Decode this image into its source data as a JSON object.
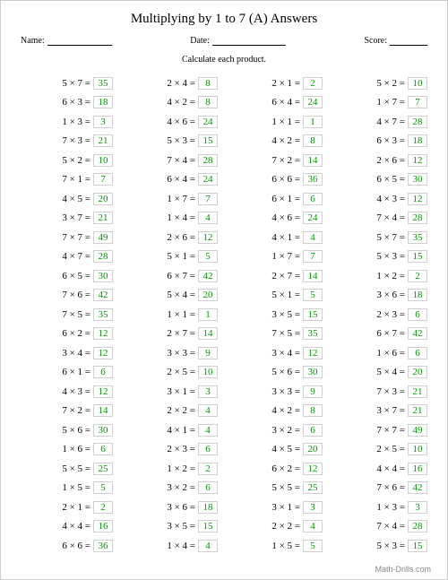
{
  "title": "Multiplying by 1 to 7 (A) Answers",
  "labels": {
    "name": "Name:",
    "date": "Date:",
    "score": "Score:"
  },
  "instruction": "Calculate each product.",
  "footer": "Math-Drills.com",
  "answer_color": "#009900",
  "answer_border": "#d0d0d0",
  "columns": [
    [
      {
        "a": 5,
        "b": 7,
        "r": 35
      },
      {
        "a": 6,
        "b": 3,
        "r": 18
      },
      {
        "a": 1,
        "b": 3,
        "r": 3
      },
      {
        "a": 7,
        "b": 3,
        "r": 21
      },
      {
        "a": 5,
        "b": 2,
        "r": 10
      },
      {
        "a": 7,
        "b": 1,
        "r": 7
      },
      {
        "a": 4,
        "b": 5,
        "r": 20
      },
      {
        "a": 3,
        "b": 7,
        "r": 21
      },
      {
        "a": 7,
        "b": 7,
        "r": 49
      },
      {
        "a": 4,
        "b": 7,
        "r": 28
      },
      {
        "a": 6,
        "b": 5,
        "r": 30
      },
      {
        "a": 7,
        "b": 6,
        "r": 42
      },
      {
        "a": 7,
        "b": 5,
        "r": 35
      },
      {
        "a": 6,
        "b": 2,
        "r": 12
      },
      {
        "a": 3,
        "b": 4,
        "r": 12
      },
      {
        "a": 6,
        "b": 1,
        "r": 6
      },
      {
        "a": 4,
        "b": 3,
        "r": 12
      },
      {
        "a": 7,
        "b": 2,
        "r": 14
      },
      {
        "a": 5,
        "b": 6,
        "r": 30
      },
      {
        "a": 1,
        "b": 6,
        "r": 6
      },
      {
        "a": 5,
        "b": 5,
        "r": 25
      },
      {
        "a": 1,
        "b": 5,
        "r": 5
      },
      {
        "a": 2,
        "b": 1,
        "r": 2
      },
      {
        "a": 4,
        "b": 4,
        "r": 16
      },
      {
        "a": 6,
        "b": 6,
        "r": 36
      }
    ],
    [
      {
        "a": 2,
        "b": 4,
        "r": 8
      },
      {
        "a": 4,
        "b": 2,
        "r": 8
      },
      {
        "a": 4,
        "b": 6,
        "r": 24
      },
      {
        "a": 5,
        "b": 3,
        "r": 15
      },
      {
        "a": 7,
        "b": 4,
        "r": 28
      },
      {
        "a": 6,
        "b": 4,
        "r": 24
      },
      {
        "a": 1,
        "b": 7,
        "r": 7
      },
      {
        "a": 1,
        "b": 4,
        "r": 4
      },
      {
        "a": 2,
        "b": 6,
        "r": 12
      },
      {
        "a": 5,
        "b": 1,
        "r": 5
      },
      {
        "a": 6,
        "b": 7,
        "r": 42
      },
      {
        "a": 5,
        "b": 4,
        "r": 20
      },
      {
        "a": 1,
        "b": 1,
        "r": 1
      },
      {
        "a": 2,
        "b": 7,
        "r": 14
      },
      {
        "a": 3,
        "b": 3,
        "r": 9
      },
      {
        "a": 2,
        "b": 5,
        "r": 10
      },
      {
        "a": 3,
        "b": 1,
        "r": 3
      },
      {
        "a": 2,
        "b": 2,
        "r": 4
      },
      {
        "a": 4,
        "b": 1,
        "r": 4
      },
      {
        "a": 2,
        "b": 3,
        "r": 6
      },
      {
        "a": 1,
        "b": 2,
        "r": 2
      },
      {
        "a": 3,
        "b": 2,
        "r": 6
      },
      {
        "a": 3,
        "b": 6,
        "r": 18
      },
      {
        "a": 3,
        "b": 5,
        "r": 15
      },
      {
        "a": 1,
        "b": 4,
        "r": 4
      }
    ],
    [
      {
        "a": 2,
        "b": 1,
        "r": 2
      },
      {
        "a": 6,
        "b": 4,
        "r": 24
      },
      {
        "a": 1,
        "b": 1,
        "r": 1
      },
      {
        "a": 4,
        "b": 2,
        "r": 8
      },
      {
        "a": 7,
        "b": 2,
        "r": 14
      },
      {
        "a": 6,
        "b": 6,
        "r": 36
      },
      {
        "a": 6,
        "b": 1,
        "r": 6
      },
      {
        "a": 4,
        "b": 6,
        "r": 24
      },
      {
        "a": 4,
        "b": 1,
        "r": 4
      },
      {
        "a": 1,
        "b": 7,
        "r": 7
      },
      {
        "a": 2,
        "b": 7,
        "r": 14
      },
      {
        "a": 5,
        "b": 1,
        "r": 5
      },
      {
        "a": 3,
        "b": 5,
        "r": 15
      },
      {
        "a": 7,
        "b": 5,
        "r": 35
      },
      {
        "a": 3,
        "b": 4,
        "r": 12
      },
      {
        "a": 5,
        "b": 6,
        "r": 30
      },
      {
        "a": 3,
        "b": 3,
        "r": 9
      },
      {
        "a": 4,
        "b": 2,
        "r": 8
      },
      {
        "a": 3,
        "b": 2,
        "r": 6
      },
      {
        "a": 4,
        "b": 5,
        "r": 20
      },
      {
        "a": 6,
        "b": 2,
        "r": 12
      },
      {
        "a": 5,
        "b": 5,
        "r": 25
      },
      {
        "a": 3,
        "b": 1,
        "r": 3
      },
      {
        "a": 2,
        "b": 2,
        "r": 4
      },
      {
        "a": 1,
        "b": 5,
        "r": 5
      }
    ],
    [
      {
        "a": 5,
        "b": 2,
        "r": 10
      },
      {
        "a": 1,
        "b": 7,
        "r": 7
      },
      {
        "a": 4,
        "b": 7,
        "r": 28
      },
      {
        "a": 6,
        "b": 3,
        "r": 18
      },
      {
        "a": 2,
        "b": 6,
        "r": 12
      },
      {
        "a": 6,
        "b": 5,
        "r": 30
      },
      {
        "a": 4,
        "b": 3,
        "r": 12
      },
      {
        "a": 7,
        "b": 4,
        "r": 28
      },
      {
        "a": 5,
        "b": 7,
        "r": 35
      },
      {
        "a": 5,
        "b": 3,
        "r": 15
      },
      {
        "a": 1,
        "b": 2,
        "r": 2
      },
      {
        "a": 3,
        "b": 6,
        "r": 18
      },
      {
        "a": 2,
        "b": 3,
        "r": 6
      },
      {
        "a": 6,
        "b": 7,
        "r": 42
      },
      {
        "a": 1,
        "b": 6,
        "r": 6
      },
      {
        "a": 5,
        "b": 4,
        "r": 20
      },
      {
        "a": 7,
        "b": 3,
        "r": 21
      },
      {
        "a": 3,
        "b": 7,
        "r": 21
      },
      {
        "a": 7,
        "b": 7,
        "r": 49
      },
      {
        "a": 2,
        "b": 5,
        "r": 10
      },
      {
        "a": 4,
        "b": 4,
        "r": 16
      },
      {
        "a": 7,
        "b": 6,
        "r": 42
      },
      {
        "a": 1,
        "b": 3,
        "r": 3
      },
      {
        "a": 7,
        "b": 4,
        "r": 28
      },
      {
        "a": 5,
        "b": 3,
        "r": 15
      }
    ]
  ]
}
